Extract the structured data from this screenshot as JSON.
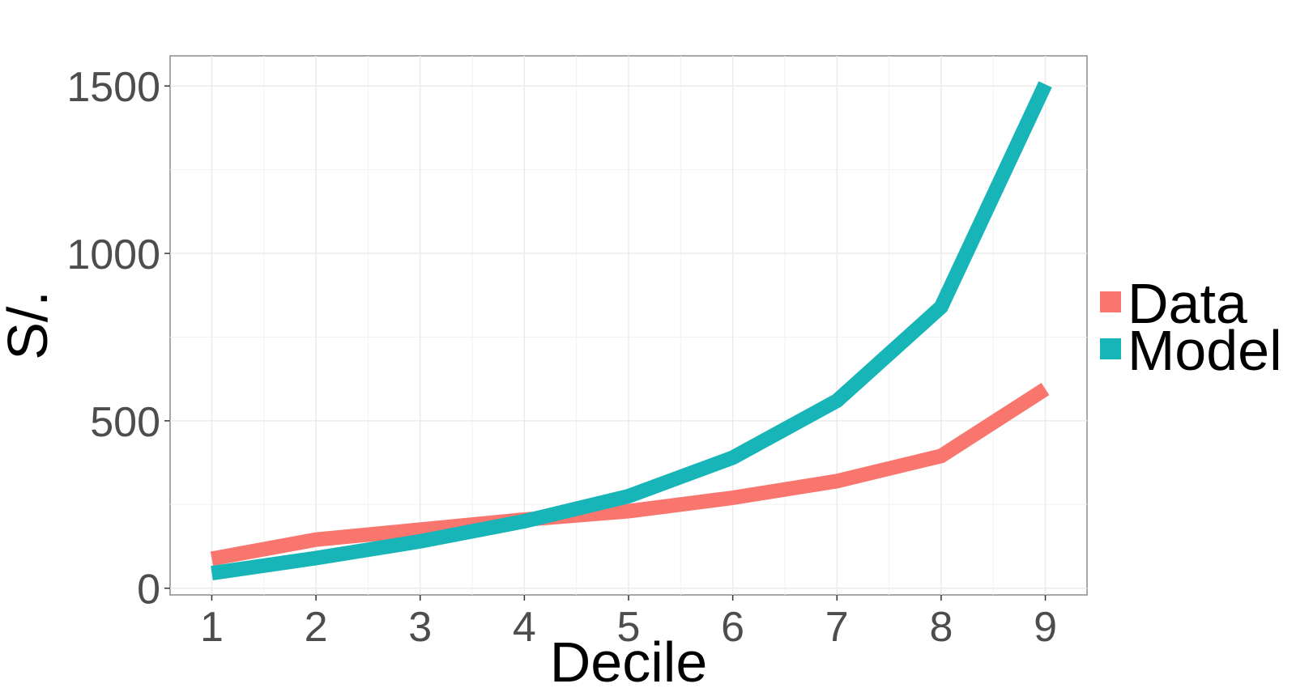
{
  "chart_data": {
    "type": "line",
    "title": "",
    "xlabel": "Decile",
    "ylabel": "S/.",
    "x": [
      1,
      2,
      3,
      4,
      5,
      6,
      7,
      8,
      9
    ],
    "x_tick_labels": [
      "1",
      "2",
      "3",
      "4",
      "5",
      "6",
      "7",
      "8",
      "9"
    ],
    "y_tick_labels": [
      "0",
      "500",
      "1000",
      "1500"
    ],
    "y_ticks": [
      0,
      500,
      1000,
      1500
    ],
    "xlim": [
      0.6,
      9.4
    ],
    "ylim": [
      -20,
      1590
    ],
    "grid": true,
    "legend_position": "right",
    "series": [
      {
        "name": "Data",
        "color": "#F8766D",
        "values": [
          88,
          145,
          175,
          205,
          230,
          270,
          320,
          395,
          595
        ]
      },
      {
        "name": "Model",
        "color": "#18B5B8",
        "values": [
          45,
          90,
          140,
          200,
          275,
          390,
          560,
          840,
          1505
        ]
      }
    ]
  }
}
